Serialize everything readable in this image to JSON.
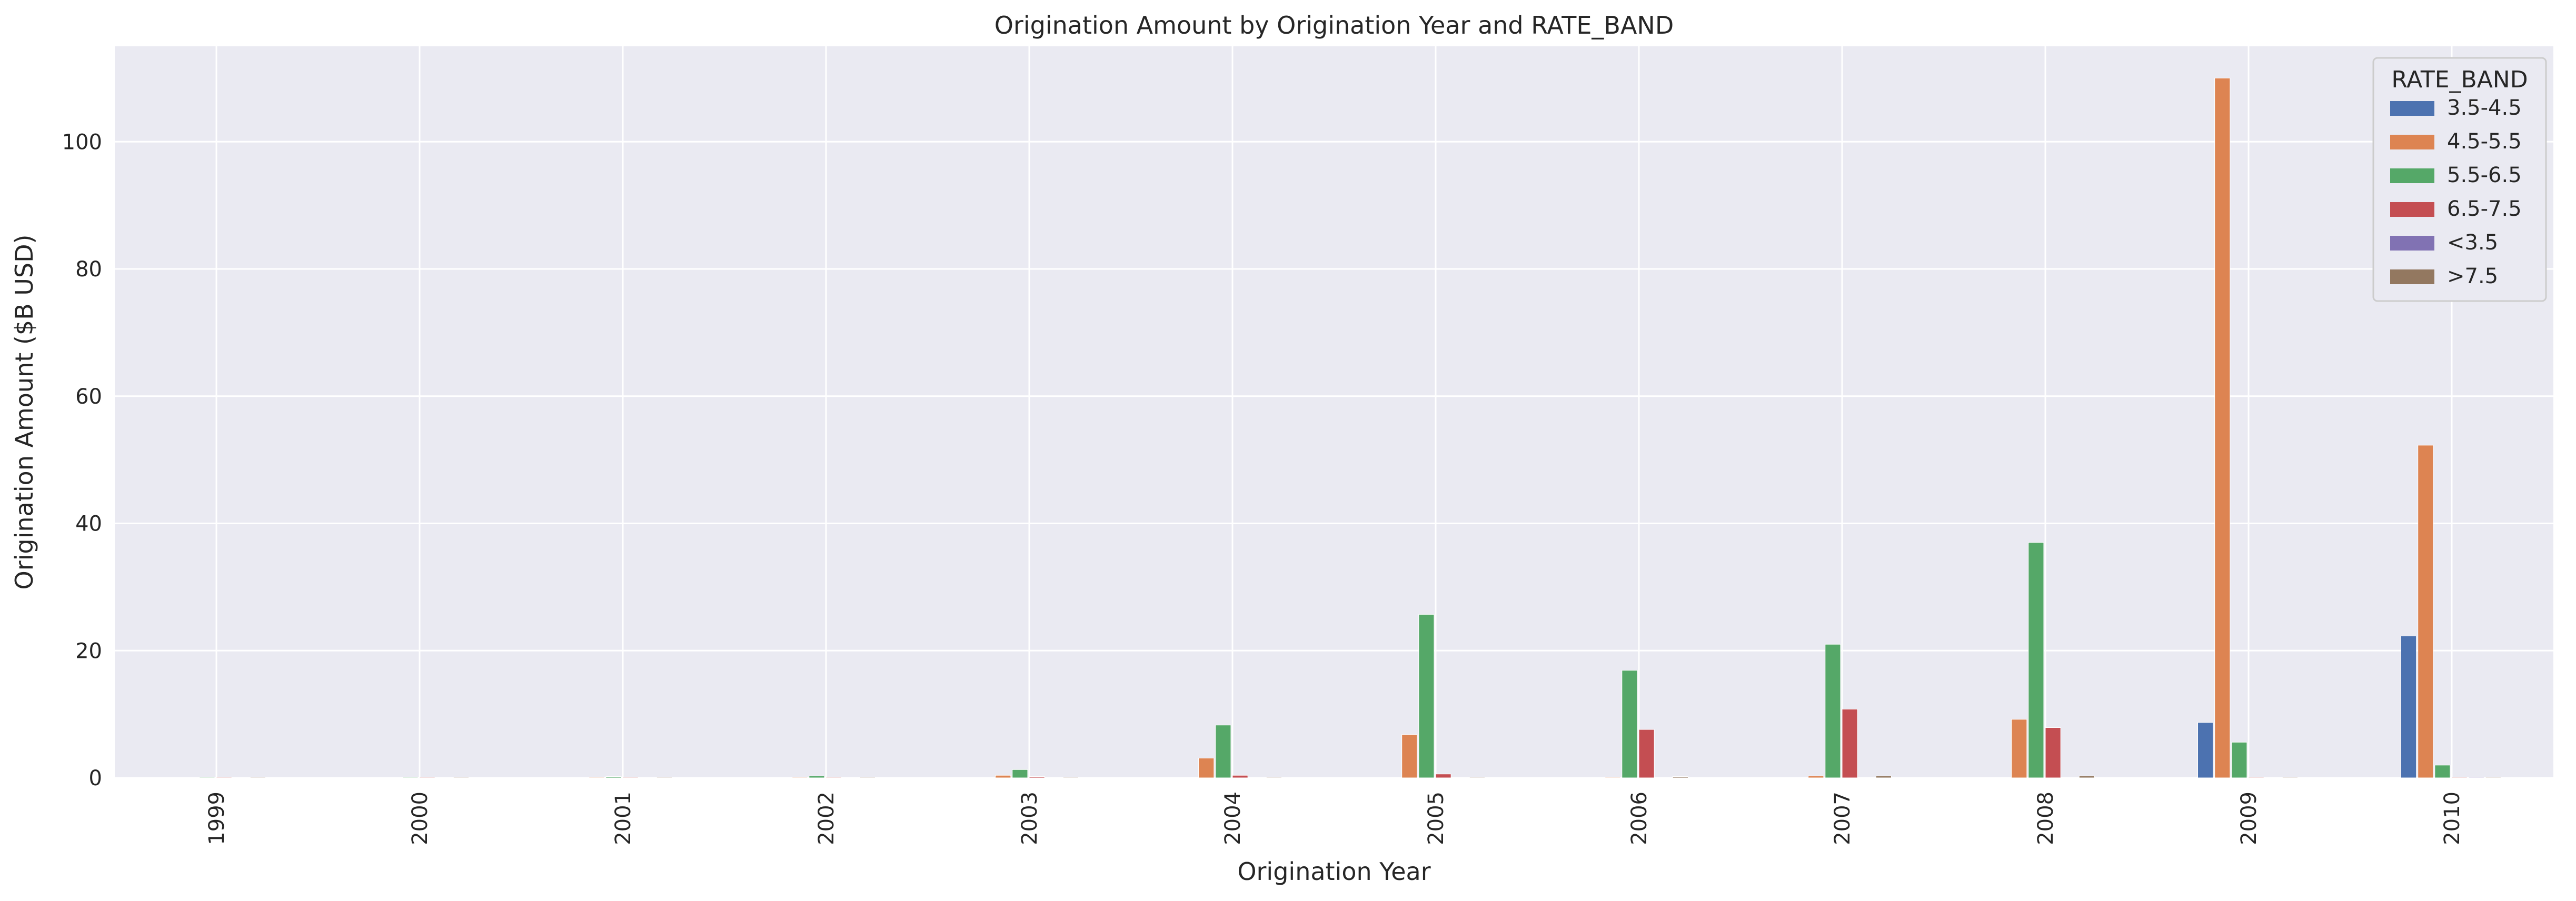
{
  "chart_data": {
    "type": "bar",
    "title": "Origination Amount by Origination Year and RATE_BAND",
    "xlabel": "Origination Year",
    "ylabel": "Origination Amount ($B USD)",
    "categories": [
      "1999",
      "2000",
      "2001",
      "2002",
      "2003",
      "2004",
      "2005",
      "2006",
      "2007",
      "2008",
      "2009",
      "2010"
    ],
    "ylim": [
      0,
      115
    ],
    "yticks": [
      0,
      20,
      40,
      60,
      80,
      100
    ],
    "grid": true,
    "legend": {
      "title": "RATE_BAND",
      "position": "top-right"
    },
    "series": [
      {
        "name": "3.5-4.5",
        "color": "#4c72b0",
        "values": [
          0,
          0,
          0,
          0,
          0,
          0,
          0,
          0,
          0,
          0,
          8.7,
          22.3
        ]
      },
      {
        "name": "4.5-5.5",
        "color": "#dd8452",
        "values": [
          0,
          0,
          0.1,
          0.1,
          0.4,
          3.1,
          6.8,
          0.1,
          0.3,
          9.2,
          110.0,
          52.3
        ]
      },
      {
        "name": "5.5-6.5",
        "color": "#55a868",
        "values": [
          0.1,
          0.1,
          0.2,
          0.3,
          1.3,
          8.3,
          25.7,
          16.9,
          21.0,
          37.0,
          5.6,
          2.0
        ]
      },
      {
        "name": "6.5-7.5",
        "color": "#c44e52",
        "values": [
          0.1,
          0.1,
          0.1,
          0.1,
          0.2,
          0.4,
          0.6,
          7.6,
          10.8,
          7.9,
          0.1,
          0.1
        ]
      },
      {
        "name": "<3.5",
        "color": "#8172b3",
        "values": [
          0,
          0,
          0,
          0,
          0,
          0,
          0,
          0,
          0,
          0,
          0,
          0.1
        ]
      },
      {
        "name": ">7.5",
        "color": "#937860",
        "values": [
          0.1,
          0.1,
          0.1,
          0.1,
          0.1,
          0.1,
          0.1,
          0.2,
          0.3,
          0.3,
          0.1,
          0.1
        ]
      }
    ]
  }
}
